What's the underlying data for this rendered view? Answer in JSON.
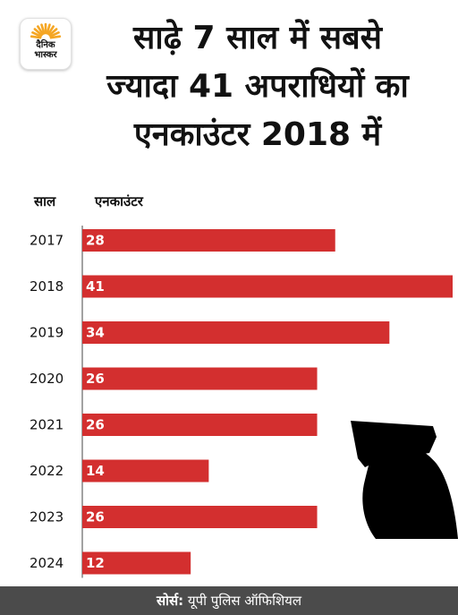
{
  "brand": {
    "logo_text_line1": "दैनिक",
    "logo_text_line2": "भास्कर",
    "logo_sun_color": "#f5a623"
  },
  "title_lines": [
    "साढ़े 7 साल में सबसे",
    "ज्यादा 41 अपराधियों का",
    "एनकाउंटर 2018 में"
  ],
  "chart_data": {
    "type": "bar",
    "orientation": "horizontal",
    "xlabel": "एनकाउंटर",
    "ylabel": "साल",
    "categories": [
      "2017",
      "2018",
      "2019",
      "2020",
      "2021",
      "2022",
      "2023",
      "2024"
    ],
    "values": [
      28,
      41,
      34,
      26,
      26,
      14,
      26,
      12
    ],
    "xlim": [
      0,
      41
    ],
    "bar_color": "#d32f2f",
    "grid": false,
    "legend": "none"
  },
  "footer": {
    "source_label": "सोर्स:",
    "source_text": "यूपी पुलिस ऑफिशियल",
    "background_color": "#4b4b4b"
  }
}
